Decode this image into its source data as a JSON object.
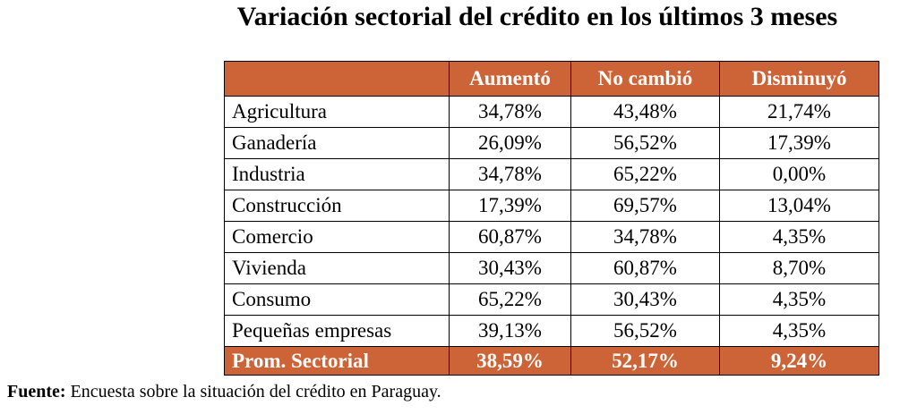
{
  "title": "Variación sectorial del crédito en los últimos 3 meses",
  "table": {
    "columns": [
      "Aumentó",
      "No cambió",
      "Disminuyó"
    ],
    "rows": [
      [
        "Agricultura",
        "34,78%",
        "43,48%",
        "21,74%"
      ],
      [
        "Ganadería",
        "26,09%",
        "56,52%",
        "17,39%"
      ],
      [
        "Industria",
        "34,78%",
        "65,22%",
        "0,00%"
      ],
      [
        "Construcción",
        "17,39%",
        "69,57%",
        "13,04%"
      ],
      [
        "Comercio",
        "60,87%",
        "34,78%",
        "4,35%"
      ],
      [
        "Vivienda",
        "30,43%",
        "60,87%",
        "8,70%"
      ],
      [
        "Consumo",
        "65,22%",
        "30,43%",
        "4,35%"
      ],
      [
        "Pequeñas empresas",
        "39,13%",
        "56,52%",
        "4,35%"
      ]
    ],
    "summary": [
      "Prom. Sectorial",
      "38,59%",
      "52,17%",
      "9,24%"
    ]
  },
  "source": {
    "label": "Fuente:",
    "text": "Encuesta sobre la situación del crédito en Paraguay."
  }
}
